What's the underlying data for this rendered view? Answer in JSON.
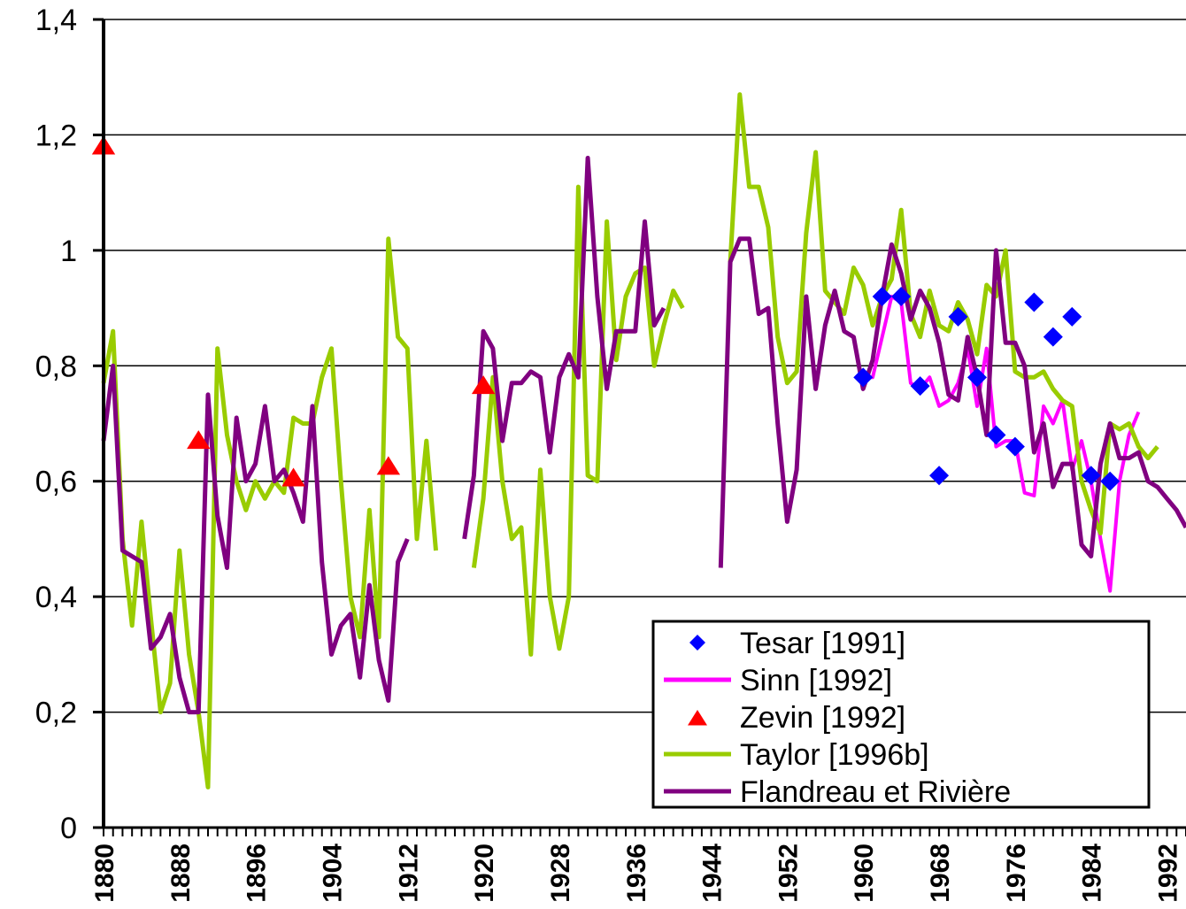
{
  "chart_data": {
    "type": "line",
    "title": "",
    "xlabel": "",
    "ylabel": "",
    "xlim": [
      1880,
      1994
    ],
    "ylim": [
      0,
      1.4
    ],
    "y_ticks": [
      {
        "value": 0,
        "label": "0"
      },
      {
        "value": 0.2,
        "label": "0,2"
      },
      {
        "value": 0.4,
        "label": "0,4"
      },
      {
        "value": 0.6,
        "label": "0,6"
      },
      {
        "value": 0.8,
        "label": "0,8"
      },
      {
        "value": 1.0,
        "label": "1"
      },
      {
        "value": 1.2,
        "label": "1,2"
      },
      {
        "value": 1.4,
        "label": "1,4"
      }
    ],
    "x_ticks": [
      {
        "value": 1880,
        "label": "1880"
      },
      {
        "value": 1888,
        "label": "1888"
      },
      {
        "value": 1896,
        "label": "1896"
      },
      {
        "value": 1904,
        "label": "1904"
      },
      {
        "value": 1912,
        "label": "1912"
      },
      {
        "value": 1920,
        "label": "1920"
      },
      {
        "value": 1928,
        "label": "1928"
      },
      {
        "value": 1936,
        "label": "1936"
      },
      {
        "value": 1944,
        "label": "1944"
      },
      {
        "value": 1952,
        "label": "1952"
      },
      {
        "value": 1960,
        "label": "1960"
      },
      {
        "value": 1968,
        "label": "1968"
      },
      {
        "value": 1976,
        "label": "1976"
      },
      {
        "value": 1984,
        "label": "1984"
      },
      {
        "value": 1992,
        "label": "1992"
      }
    ],
    "grid": "horizontal",
    "legend_position": "bottom-right",
    "series": [
      {
        "name": "Tesar [1991]",
        "kind": "scatter",
        "marker": "diamond",
        "color": "#0000ff",
        "points": [
          [
            1960,
            0.78
          ],
          [
            1962,
            0.92
          ],
          [
            1964,
            0.92
          ],
          [
            1966,
            0.765
          ],
          [
            1968,
            0.61
          ],
          [
            1970,
            0.885
          ],
          [
            1972,
            0.78
          ],
          [
            1974,
            0.68
          ],
          [
            1976,
            0.66
          ],
          [
            1978,
            0.91
          ],
          [
            1980,
            0.85
          ],
          [
            1982,
            0.885
          ],
          [
            1984,
            0.61
          ],
          [
            1986,
            0.6
          ]
        ]
      },
      {
        "name": "Sinn [1992]",
        "kind": "line",
        "color": "#ff00ff",
        "points": [
          [
            1960,
            0.78
          ],
          [
            1961,
            0.78
          ],
          [
            1962,
            0.85
          ],
          [
            1963,
            0.92
          ],
          [
            1964,
            0.91
          ],
          [
            1965,
            0.77
          ],
          [
            1966,
            0.76
          ],
          [
            1967,
            0.78
          ],
          [
            1968,
            0.73
          ],
          [
            1969,
            0.74
          ],
          [
            1970,
            0.77
          ],
          [
            1971,
            0.83
          ],
          [
            1972,
            0.73
          ],
          [
            1973,
            0.83
          ],
          [
            1974,
            0.66
          ],
          [
            1975,
            0.67
          ],
          [
            1976,
            0.67
          ],
          [
            1977,
            0.58
          ],
          [
            1978,
            0.575
          ],
          [
            1979,
            0.73
          ],
          [
            1980,
            0.7
          ],
          [
            1981,
            0.74
          ],
          [
            1982,
            0.62
          ],
          [
            1983,
            0.67
          ],
          [
            1984,
            0.6
          ],
          [
            1985,
            0.5
          ],
          [
            1986,
            0.41
          ],
          [
            1987,
            0.6
          ],
          [
            1988,
            0.68
          ],
          [
            1989,
            0.72
          ]
        ]
      },
      {
        "name": "Zevin [1992]",
        "kind": "scatter",
        "marker": "triangle",
        "color": "#ff0000",
        "points": [
          [
            1880,
            1.18
          ],
          [
            1890,
            0.67
          ],
          [
            1900,
            0.605
          ],
          [
            1910,
            0.625
          ],
          [
            1920,
            0.765
          ]
        ]
      },
      {
        "name": "Taylor [1996b]",
        "kind": "line",
        "color": "#99cc00",
        "segments": [
          [
            [
              1880,
              0.77
            ],
            [
              1881,
              0.86
            ],
            [
              1882,
              0.5
            ],
            [
              1883,
              0.35
            ],
            [
              1884,
              0.53
            ],
            [
              1885,
              0.36
            ],
            [
              1886,
              0.2
            ],
            [
              1887,
              0.25
            ],
            [
              1888,
              0.48
            ],
            [
              1889,
              0.3
            ],
            [
              1890,
              0.2
            ],
            [
              1891,
              0.07
            ],
            [
              1892,
              0.83
            ],
            [
              1893,
              0.68
            ],
            [
              1894,
              0.6
            ],
            [
              1895,
              0.55
            ],
            [
              1896,
              0.6
            ],
            [
              1897,
              0.57
            ],
            [
              1898,
              0.6
            ],
            [
              1899,
              0.58
            ],
            [
              1900,
              0.71
            ],
            [
              1901,
              0.7
            ],
            [
              1902,
              0.7
            ],
            [
              1903,
              0.78
            ],
            [
              1904,
              0.83
            ],
            [
              1905,
              0.6
            ],
            [
              1906,
              0.4
            ],
            [
              1907,
              0.33
            ],
            [
              1908,
              0.55
            ],
            [
              1909,
              0.33
            ],
            [
              1910,
              1.02
            ],
            [
              1911,
              0.85
            ],
            [
              1912,
              0.83
            ],
            [
              1913,
              0.5
            ],
            [
              1914,
              0.67
            ],
            [
              1915,
              0.48
            ]
          ],
          [
            [
              1919,
              0.45
            ],
            [
              1920,
              0.57
            ],
            [
              1921,
              0.78
            ],
            [
              1922,
              0.6
            ],
            [
              1923,
              0.5
            ],
            [
              1924,
              0.52
            ],
            [
              1925,
              0.3
            ],
            [
              1926,
              0.62
            ],
            [
              1927,
              0.4
            ],
            [
              1928,
              0.31
            ],
            [
              1929,
              0.4
            ],
            [
              1930,
              1.11
            ],
            [
              1931,
              0.61
            ],
            [
              1932,
              0.6
            ],
            [
              1933,
              1.05
            ],
            [
              1934,
              0.81
            ],
            [
              1935,
              0.92
            ],
            [
              1936,
              0.96
            ],
            [
              1937,
              0.97
            ],
            [
              1938,
              0.8
            ],
            [
              1939,
              0.87
            ],
            [
              1940,
              0.93
            ],
            [
              1941,
              0.9
            ]
          ],
          [
            [
              1946,
              0.98
            ],
            [
              1947,
              1.27
            ],
            [
              1948,
              1.11
            ],
            [
              1949,
              1.11
            ],
            [
              1950,
              1.04
            ],
            [
              1951,
              0.85
            ],
            [
              1952,
              0.77
            ],
            [
              1953,
              0.79
            ],
            [
              1954,
              1.03
            ],
            [
              1955,
              1.17
            ],
            [
              1956,
              0.93
            ],
            [
              1957,
              0.91
            ],
            [
              1958,
              0.89
            ],
            [
              1959,
              0.97
            ],
            [
              1960,
              0.94
            ],
            [
              1961,
              0.87
            ],
            [
              1962,
              0.92
            ],
            [
              1963,
              0.95
            ],
            [
              1964,
              1.07
            ],
            [
              1965,
              0.89
            ],
            [
              1966,
              0.85
            ],
            [
              1967,
              0.93
            ],
            [
              1968,
              0.87
            ],
            [
              1969,
              0.86
            ],
            [
              1970,
              0.91
            ],
            [
              1971,
              0.88
            ],
            [
              1972,
              0.82
            ],
            [
              1973,
              0.94
            ],
            [
              1974,
              0.92
            ],
            [
              1975,
              1.0
            ],
            [
              1976,
              0.79
            ],
            [
              1977,
              0.78
            ],
            [
              1978,
              0.78
            ],
            [
              1979,
              0.79
            ],
            [
              1980,
              0.76
            ],
            [
              1981,
              0.74
            ],
            [
              1982,
              0.73
            ],
            [
              1983,
              0.6
            ],
            [
              1984,
              0.55
            ],
            [
              1985,
              0.51
            ],
            [
              1986,
              0.7
            ],
            [
              1987,
              0.69
            ],
            [
              1988,
              0.7
            ],
            [
              1989,
              0.66
            ],
            [
              1990,
              0.64
            ],
            [
              1991,
              0.66
            ]
          ]
        ]
      },
      {
        "name": "Flandreau et Rivière",
        "kind": "line",
        "color": "#800080",
        "segments": [
          [
            [
              1880,
              0.67
            ],
            [
              1881,
              0.8
            ],
            [
              1882,
              0.48
            ],
            [
              1883,
              0.47
            ],
            [
              1884,
              0.46
            ],
            [
              1885,
              0.31
            ],
            [
              1886,
              0.33
            ],
            [
              1887,
              0.37
            ],
            [
              1888,
              0.26
            ],
            [
              1889,
              0.2
            ],
            [
              1890,
              0.2
            ],
            [
              1891,
              0.75
            ],
            [
              1892,
              0.54
            ],
            [
              1893,
              0.45
            ],
            [
              1894,
              0.71
            ],
            [
              1895,
              0.6
            ],
            [
              1896,
              0.63
            ],
            [
              1897,
              0.73
            ],
            [
              1898,
              0.6
            ],
            [
              1899,
              0.62
            ],
            [
              1900,
              0.58
            ],
            [
              1901,
              0.53
            ],
            [
              1902,
              0.73
            ],
            [
              1903,
              0.46
            ],
            [
              1904,
              0.3
            ],
            [
              1905,
              0.35
            ],
            [
              1906,
              0.37
            ],
            [
              1907,
              0.26
            ],
            [
              1908,
              0.42
            ],
            [
              1909,
              0.29
            ],
            [
              1910,
              0.22
            ],
            [
              1911,
              0.46
            ],
            [
              1912,
              0.5
            ]
          ],
          [
            [
              1918,
              0.5
            ],
            [
              1919,
              0.61
            ],
            [
              1920,
              0.86
            ],
            [
              1921,
              0.83
            ],
            [
              1922,
              0.67
            ],
            [
              1923,
              0.77
            ],
            [
              1924,
              0.77
            ],
            [
              1925,
              0.79
            ],
            [
              1926,
              0.78
            ],
            [
              1927,
              0.65
            ],
            [
              1928,
              0.78
            ],
            [
              1929,
              0.82
            ],
            [
              1930,
              0.78
            ],
            [
              1931,
              1.16
            ],
            [
              1932,
              0.92
            ],
            [
              1933,
              0.76
            ],
            [
              1934,
              0.86
            ],
            [
              1935,
              0.86
            ],
            [
              1936,
              0.86
            ],
            [
              1937,
              1.05
            ],
            [
              1938,
              0.87
            ],
            [
              1939,
              0.9
            ]
          ],
          [
            [
              1945,
              0.45
            ],
            [
              1946,
              0.98
            ],
            [
              1947,
              1.02
            ],
            [
              1948,
              1.02
            ],
            [
              1949,
              0.89
            ],
            [
              1950,
              0.9
            ],
            [
              1951,
              0.7
            ],
            [
              1952,
              0.53
            ],
            [
              1953,
              0.62
            ],
            [
              1954,
              0.92
            ],
            [
              1955,
              0.76
            ],
            [
              1956,
              0.87
            ],
            [
              1957,
              0.93
            ],
            [
              1958,
              0.86
            ],
            [
              1959,
              0.85
            ],
            [
              1960,
              0.76
            ],
            [
              1961,
              0.81
            ],
            [
              1962,
              0.92
            ],
            [
              1963,
              1.01
            ],
            [
              1964,
              0.96
            ],
            [
              1965,
              0.88
            ],
            [
              1966,
              0.93
            ],
            [
              1967,
              0.9
            ],
            [
              1968,
              0.84
            ],
            [
              1969,
              0.75
            ],
            [
              1970,
              0.74
            ],
            [
              1971,
              0.85
            ],
            [
              1972,
              0.78
            ],
            [
              1973,
              0.68
            ],
            [
              1974,
              1.0
            ],
            [
              1975,
              0.84
            ],
            [
              1976,
              0.84
            ],
            [
              1977,
              0.8
            ],
            [
              1978,
              0.65
            ],
            [
              1979,
              0.7
            ],
            [
              1980,
              0.59
            ],
            [
              1981,
              0.63
            ],
            [
              1982,
              0.63
            ],
            [
              1983,
              0.49
            ],
            [
              1984,
              0.47
            ],
            [
              1985,
              0.63
            ],
            [
              1986,
              0.7
            ],
            [
              1987,
              0.64
            ],
            [
              1988,
              0.64
            ],
            [
              1989,
              0.65
            ],
            [
              1990,
              0.6
            ],
            [
              1991,
              0.59
            ],
            [
              1992,
              0.57
            ],
            [
              1993,
              0.55
            ],
            [
              1994,
              0.52
            ]
          ]
        ]
      }
    ]
  }
}
